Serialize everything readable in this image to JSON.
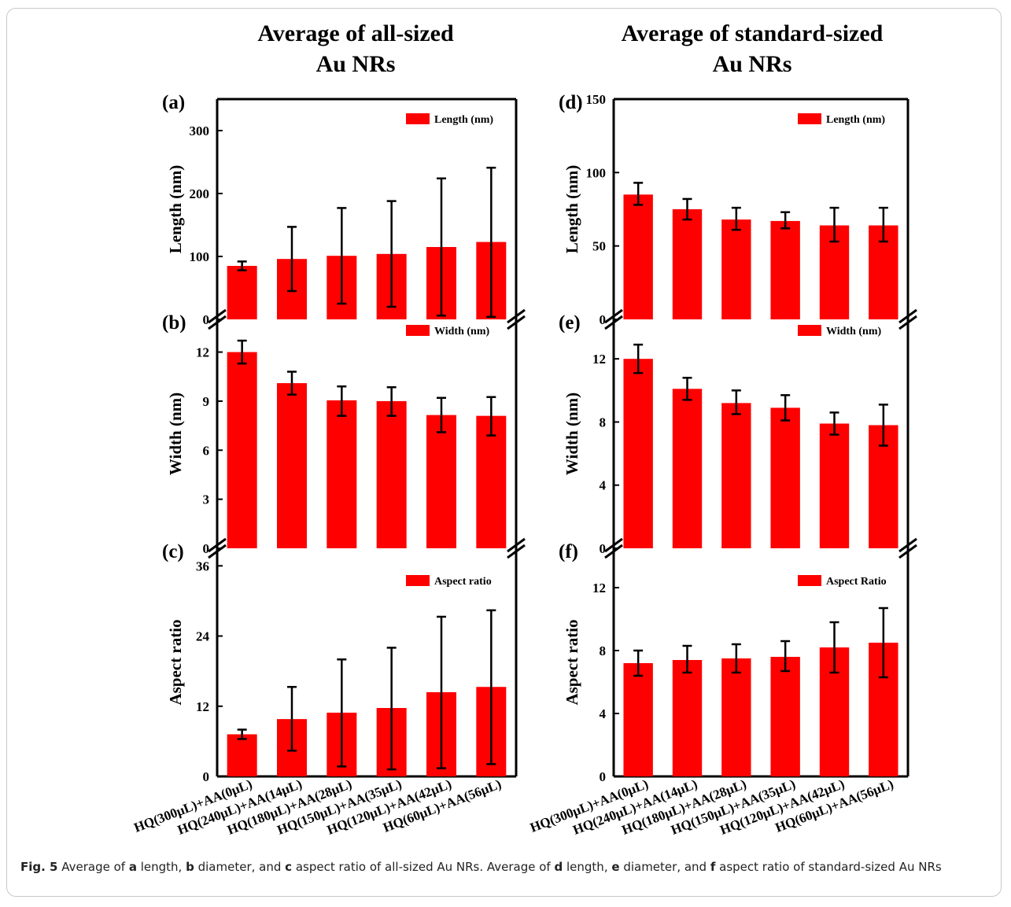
{
  "figure": {
    "column_titles": [
      [
        "Average of all-sized",
        "Au NRs"
      ],
      [
        "Average of standard-sized",
        "Au NRs"
      ]
    ]
  },
  "categories": [
    "HQ(300μL)+AA(0μL)",
    "HQ(240μL)+AA(14μL)",
    "HQ(180μL)+AA(28μL)",
    "HQ(150μL)+AA(35μL)",
    "HQ(120μL)+AA(42μL)",
    "HQ(60μL)+AA(56μL)"
  ],
  "colors": {
    "bar": "#ff0000",
    "axis": "#000000"
  },
  "chart_data": [
    {
      "type": "bar",
      "panel": "(a)",
      "ylabel": "Length (nm)",
      "legend": "Length (nm)",
      "ylim": [
        0,
        350
      ],
      "ticks": [
        0,
        100,
        200,
        300
      ],
      "values": [
        85,
        96,
        101,
        104,
        115,
        123
      ],
      "errors": [
        [
          78,
          92
        ],
        [
          45,
          147
        ],
        [
          25,
          177
        ],
        [
          20,
          188
        ],
        [
          6,
          224
        ],
        [
          4,
          241
        ]
      ]
    },
    {
      "type": "bar",
      "panel": "(b)",
      "ylabel": "Width (nm)",
      "legend": "Width (nm)",
      "ylim": [
        0,
        14
      ],
      "ticks": [
        0,
        3,
        6,
        9,
        12
      ],
      "values": [
        12.0,
        10.1,
        9.05,
        9.0,
        8.15,
        8.1
      ],
      "errors": [
        [
          11.3,
          12.7
        ],
        [
          9.4,
          10.8
        ],
        [
          8.1,
          9.9
        ],
        [
          8.1,
          9.85
        ],
        [
          7.1,
          9.2
        ],
        [
          6.9,
          9.25
        ]
      ]
    },
    {
      "type": "bar",
      "panel": "(c)",
      "ylabel": "Aspect ratio",
      "legend": "Aspect ratio",
      "ylim": [
        0,
        39
      ],
      "ticks": [
        0,
        12,
        24,
        36
      ],
      "values": [
        7.2,
        9.8,
        10.9,
        11.7,
        14.4,
        15.3
      ],
      "errors": [
        [
          6.4,
          8.0
        ],
        [
          4.4,
          15.3
        ],
        [
          1.7,
          20.0
        ],
        [
          1.2,
          22.0
        ],
        [
          1.4,
          27.3
        ],
        [
          2.1,
          28.4
        ]
      ]
    },
    {
      "type": "bar",
      "panel": "(d)",
      "ylabel": "Length (nm)",
      "legend": "Length (nm)",
      "ylim": [
        0,
        150
      ],
      "ticks": [
        0,
        50,
        100,
        150
      ],
      "values": [
        85,
        75,
        68,
        67,
        64,
        64
      ],
      "errors": [
        [
          78,
          93
        ],
        [
          68,
          82
        ],
        [
          61,
          76
        ],
        [
          62,
          73
        ],
        [
          53,
          76
        ],
        [
          53,
          76
        ]
      ]
    },
    {
      "type": "bar",
      "panel": "(e)",
      "ylabel": "Width (nm)",
      "legend": "Width (nm)",
      "ylim": [
        0,
        14.5
      ],
      "ticks": [
        0,
        4,
        8,
        12
      ],
      "values": [
        12.0,
        10.1,
        9.2,
        8.9,
        7.9,
        7.8
      ],
      "errors": [
        [
          11.1,
          12.9
        ],
        [
          9.4,
          10.8
        ],
        [
          8.5,
          10.0
        ],
        [
          8.1,
          9.7
        ],
        [
          7.2,
          8.6
        ],
        [
          6.5,
          9.1
        ]
      ]
    },
    {
      "type": "bar",
      "panel": "(f)",
      "ylabel": "Aspect ratio",
      "legend": "Aspect Ratio",
      "ylim": [
        0,
        14.5
      ],
      "ticks": [
        0,
        4,
        8,
        12
      ],
      "values": [
        7.2,
        7.4,
        7.5,
        7.6,
        8.2,
        8.5
      ],
      "errors": [
        [
          6.4,
          8.0
        ],
        [
          6.6,
          8.3
        ],
        [
          6.6,
          8.4
        ],
        [
          6.7,
          8.6
        ],
        [
          6.6,
          9.8
        ],
        [
          6.3,
          10.7
        ]
      ]
    }
  ],
  "caption": {
    "label": "Fig. 5",
    "parts": [
      {
        "t": "  Average of "
      },
      {
        "b": "a"
      },
      {
        "t": " length, "
      },
      {
        "b": "b"
      },
      {
        "t": " diameter, and "
      },
      {
        "b": "c"
      },
      {
        "t": " aspect ratio of all-sized Au NRs. Average of "
      },
      {
        "b": "d"
      },
      {
        "t": " length, "
      },
      {
        "b": "e"
      },
      {
        "t": " diameter, and "
      },
      {
        "b": "f"
      },
      {
        "t": " aspect ratio of standard-sized Au NRs"
      }
    ]
  }
}
